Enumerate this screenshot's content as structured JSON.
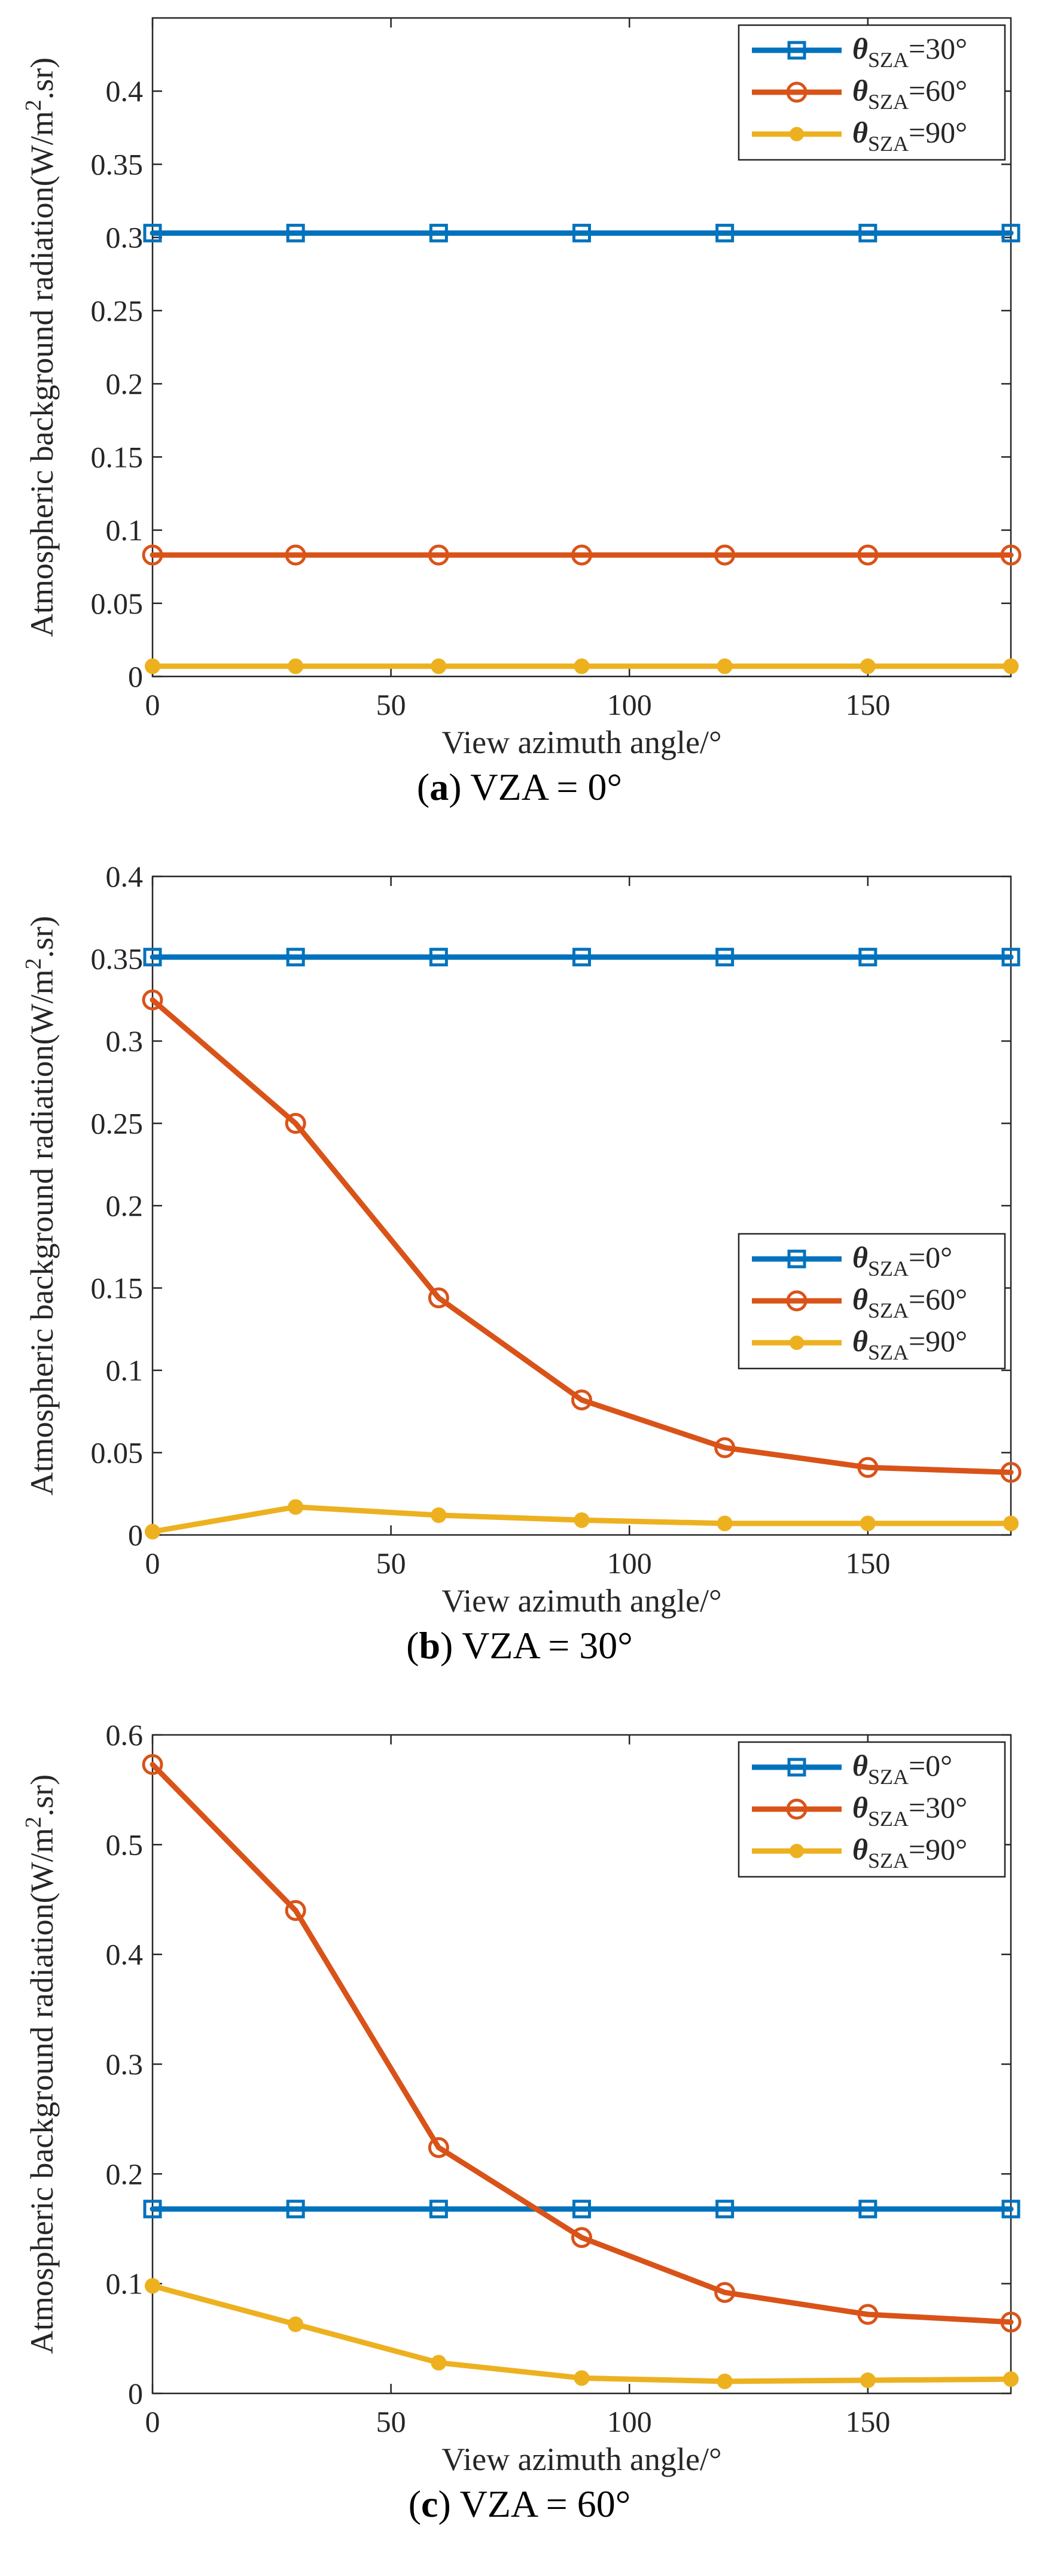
{
  "chart_data": [
    {
      "type": "line",
      "panel_label": "a",
      "caption_text": "VZA = 0°",
      "xlabel": "View azimuth angle/°",
      "ylabel": "Atmospheric background radiation(W/m^2.sr)",
      "ylabel_parts": {
        "pre": "Atmospheric background radiation(W/m",
        "sup": "2",
        "post": ".sr)"
      },
      "xlim": [
        0,
        180
      ],
      "ylim": [
        0,
        0.45
      ],
      "xticks": [
        0,
        50,
        100,
        150
      ],
      "yticks": [
        0,
        0.05,
        0.1,
        0.15,
        0.2,
        0.25,
        0.3,
        0.35,
        0.4
      ],
      "ytick_labels": [
        "0",
        "0.05",
        "0.1",
        "0.15",
        "0.2",
        "0.25",
        "0.3",
        "0.35",
        "0.4"
      ],
      "legend_position": "top-right",
      "x": [
        0,
        30,
        60,
        90,
        120,
        150,
        180
      ],
      "series": [
        {
          "name": "θSZA=30°",
          "symbol": "θ",
          "sub": "SZA",
          "eq": "=30°",
          "color": "#0072BD",
          "marker": "square",
          "values": [
            0.303,
            0.303,
            0.303,
            0.303,
            0.303,
            0.303,
            0.303
          ]
        },
        {
          "name": "θSZA=60°",
          "symbol": "θ",
          "sub": "SZA",
          "eq": "=60°",
          "color": "#D95319",
          "marker": "circle",
          "values": [
            0.083,
            0.083,
            0.083,
            0.083,
            0.083,
            0.083,
            0.083
          ]
        },
        {
          "name": "θSZA=90°",
          "symbol": "θ",
          "sub": "SZA",
          "eq": "=90°",
          "color": "#EDB120",
          "marker": "dot",
          "values": [
            0.007,
            0.007,
            0.007,
            0.007,
            0.007,
            0.007,
            0.007
          ]
        }
      ]
    },
    {
      "type": "line",
      "panel_label": "b",
      "caption_text": "VZA = 30°",
      "xlabel": "View azimuth angle/°",
      "ylabel": "Atmospheric background radiation(W/m^2.sr)",
      "ylabel_parts": {
        "pre": "Atmospheric background radiation(W/m",
        "sup": "2",
        "post": ".sr)"
      },
      "xlim": [
        0,
        180
      ],
      "ylim": [
        0,
        0.4
      ],
      "xticks": [
        0,
        50,
        100,
        150
      ],
      "yticks": [
        0,
        0.05,
        0.1,
        0.15,
        0.2,
        0.25,
        0.3,
        0.35,
        0.4
      ],
      "ytick_labels": [
        "0",
        "0.05",
        "0.1",
        "0.15",
        "0.2",
        "0.25",
        "0.3",
        "0.35",
        "0.4"
      ],
      "legend_position": "lower-right",
      "x": [
        0,
        30,
        60,
        90,
        120,
        150,
        180
      ],
      "series": [
        {
          "name": "θSZA=0°",
          "symbol": "θ",
          "sub": "SZA",
          "eq": "=0°",
          "color": "#0072BD",
          "marker": "square",
          "values": [
            0.351,
            0.351,
            0.351,
            0.351,
            0.351,
            0.351,
            0.351
          ]
        },
        {
          "name": "θSZA=60°",
          "symbol": "θ",
          "sub": "SZA",
          "eq": "=60°",
          "color": "#D95319",
          "marker": "circle",
          "values": [
            0.325,
            0.25,
            0.144,
            0.082,
            0.053,
            0.041,
            0.038
          ]
        },
        {
          "name": "θSZA=90°",
          "symbol": "θ",
          "sub": "SZA",
          "eq": "=90°",
          "color": "#EDB120",
          "marker": "dot",
          "values": [
            0.002,
            0.017,
            0.012,
            0.009,
            0.007,
            0.007,
            0.007
          ]
        }
      ]
    },
    {
      "type": "line",
      "panel_label": "c",
      "caption_text": "VZA = 60°",
      "xlabel": "View azimuth angle/°",
      "ylabel": "Atmospheric background radiation(W/m^2.sr)",
      "ylabel_parts": {
        "pre": "Atmospheric background radiation(W/m",
        "sup": "2",
        "post": ".sr)"
      },
      "xlim": [
        0,
        180
      ],
      "ylim": [
        0,
        0.6
      ],
      "xticks": [
        0,
        50,
        100,
        150
      ],
      "yticks": [
        0,
        0.1,
        0.2,
        0.3,
        0.4,
        0.5,
        0.6
      ],
      "ytick_labels": [
        "0",
        "0.1",
        "0.2",
        "0.3",
        "0.4",
        "0.5",
        "0.6"
      ],
      "legend_position": "top-right",
      "x": [
        0,
        30,
        60,
        90,
        120,
        150,
        180
      ],
      "series": [
        {
          "name": "θSZA=0°",
          "symbol": "θ",
          "sub": "SZA",
          "eq": "=0°",
          "color": "#0072BD",
          "marker": "square",
          "values": [
            0.168,
            0.168,
            0.168,
            0.168,
            0.168,
            0.168,
            0.168
          ]
        },
        {
          "name": "θSZA=30°",
          "symbol": "θ",
          "sub": "SZA",
          "eq": "=30°",
          "color": "#D95319",
          "marker": "circle",
          "values": [
            0.573,
            0.44,
            0.224,
            0.142,
            0.092,
            0.072,
            0.065
          ]
        },
        {
          "name": "θSZA=90°",
          "symbol": "θ",
          "sub": "SZA",
          "eq": "=90°",
          "color": "#EDB120",
          "marker": "dot",
          "values": [
            0.098,
            0.063,
            0.028,
            0.014,
            0.011,
            0.012,
            0.013
          ]
        }
      ]
    }
  ]
}
